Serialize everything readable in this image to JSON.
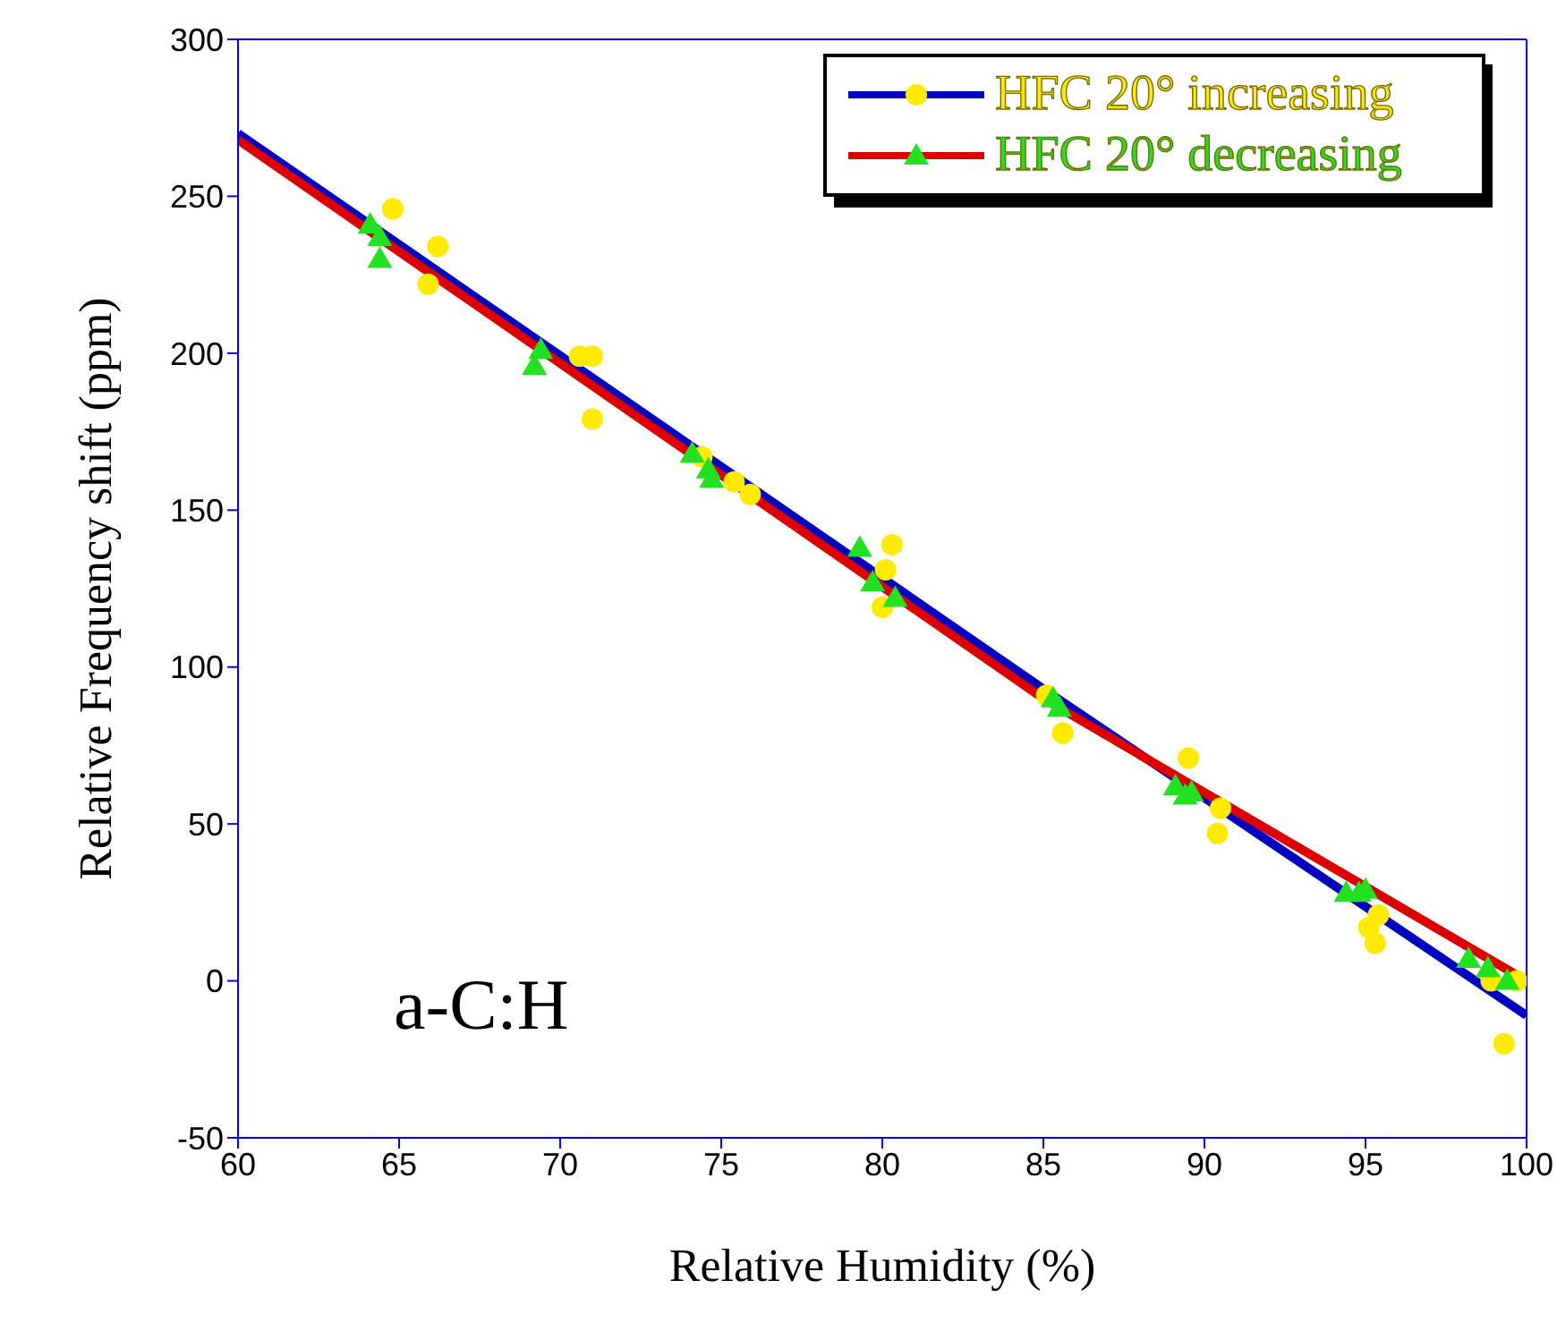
{
  "chart_data": {
    "type": "scatter",
    "xlabel": "Relative Humidity (%)",
    "ylabel": "Relative Frequency shift (ppm)",
    "xlim": [
      60,
      100
    ],
    "xticks": [
      60,
      65,
      70,
      75,
      80,
      85,
      90,
      95,
      100
    ],
    "ylim": [
      -50,
      300
    ],
    "yticks": [
      -50,
      0,
      50,
      100,
      150,
      200,
      250,
      300
    ],
    "grid": false,
    "legend": "top right",
    "annotations": [
      "a-C:H"
    ],
    "series": [
      {
        "name": "HFC 20° increasing",
        "marker": "circle",
        "color": "#ffea00",
        "x": [
          64.8,
          66.2,
          65.9,
          70.6,
          71.0,
          71.0,
          74.4,
          75.4,
          75.9,
          80.3,
          80.1,
          80.0,
          85.1,
          85.6,
          89.5,
          90.5,
          90.4,
          95.4,
          95.1,
          95.3,
          98.9,
          99.7,
          99.3
        ],
        "values": [
          246,
          234,
          222,
          199,
          199,
          179,
          167,
          159,
          155,
          139,
          131,
          119,
          91,
          79,
          71,
          55,
          47,
          21,
          17,
          12,
          0,
          0,
          -20
        ]
      },
      {
        "name": "HFC 20° decreasing",
        "marker": "triangle",
        "color": "#22e022",
        "x": [
          64.1,
          64.4,
          64.4,
          69.4,
          69.2,
          74.1,
          74.6,
          74.7,
          79.3,
          79.7,
          80.4,
          85.3,
          85.5,
          89.1,
          89.4,
          89.6,
          94.4,
          94.8,
          95.0,
          98.2,
          98.8,
          99.4
        ],
        "values": [
          241,
          237,
          230,
          201,
          196,
          168,
          163,
          160,
          138,
          127,
          122,
          90,
          87,
          62,
          59,
          60,
          28,
          28,
          29,
          7,
          4,
          0
        ]
      },
      {
        "type": "line",
        "marker": "none",
        "color": "#0000c0",
        "x": [
          60,
          85,
          100
        ],
        "values": [
          270,
          93,
          -11
        ]
      },
      {
        "type": "line",
        "marker": "none",
        "color": "#dd0000",
        "x": [
          60,
          85,
          100
        ],
        "values": [
          268,
          90,
          0
        ]
      }
    ]
  }
}
